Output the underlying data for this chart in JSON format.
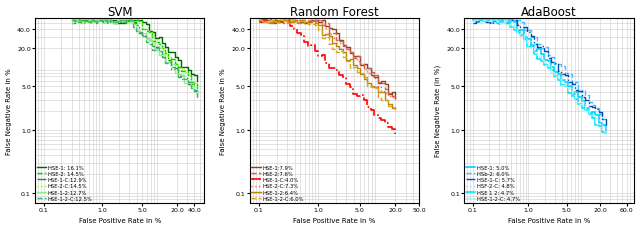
{
  "panels": [
    {
      "title": "SVM",
      "xlabel": "False Positive Rate in %",
      "ylabel": "False Negative Rate in %",
      "xlim": [
        0.07,
        60
      ],
      "ylim": [
        0.07,
        60
      ],
      "xticks": [
        0.1,
        1,
        5,
        20,
        40
      ],
      "yticks": [
        0.1,
        1,
        5,
        20,
        40
      ],
      "fpr_start": 0.3,
      "fpr_end": 45,
      "curves": [
        {
          "label": "HSE-1: 16.1%",
          "color": "#006400",
          "ls": "-",
          "lw": 1.0,
          "eer": 16.1
        },
        {
          "label": "HSE-2: 14.5%",
          "color": "#00cc00",
          "ls": "--",
          "lw": 1.0,
          "eer": 14.5
        },
        {
          "label": "HSE-1-C:12.9%",
          "color": "#228B22",
          "ls": "-.",
          "lw": 1.0,
          "eer": 12.9
        },
        {
          "label": "HSE-2-C:14.5%",
          "color": "#7cfc00",
          "ls": ":",
          "lw": 1.0,
          "eer": 14.5
        },
        {
          "label": "HSE-1-2:12.7%",
          "color": "#90ee90",
          "ls": "-",
          "lw": 1.0,
          "eer": 12.7
        },
        {
          "label": "HSE-1-2-C:12.5%",
          "color": "#3cb371",
          "ls": "--",
          "lw": 1.0,
          "eer": 12.5
        }
      ]
    },
    {
      "title": "Random Forest",
      "xlabel": "False Positive Rate in %",
      "ylabel": "False Negative Rate in %",
      "xlim": [
        0.07,
        50
      ],
      "ylim": [
        0.07,
        60
      ],
      "xticks": [
        0.1,
        1,
        5,
        20,
        50
      ],
      "yticks": [
        0.1,
        1,
        5,
        20,
        40
      ],
      "fpr_start": 0.1,
      "fpr_end": 20,
      "curves": [
        {
          "label": "HSE-1:7.9%",
          "color": "#8B4513",
          "ls": "-",
          "lw": 1.0,
          "eer": 7.9
        },
        {
          "label": "HSE-2:7.6%",
          "color": "#cd5c5c",
          "ls": "--",
          "lw": 1.0,
          "eer": 7.6
        },
        {
          "label": "HSE-1-C:4.0%",
          "color": "#ff0000",
          "ls": "-.",
          "lw": 1.2,
          "eer": 4.0
        },
        {
          "label": "HSE-2-C:7.3%",
          "color": "#ff6347",
          "ls": ":",
          "lw": 1.0,
          "eer": 7.3
        },
        {
          "label": "HSE-1-2:6.4%",
          "color": "#b8860b",
          "ls": "-",
          "lw": 1.0,
          "eer": 6.4
        },
        {
          "label": "HSE-1-2-C:6.0%",
          "color": "#daa520",
          "ls": "--",
          "lw": 1.0,
          "eer": 6.0
        }
      ]
    },
    {
      "title": "AdaBoost",
      "xlabel": "False Positive Rate in %",
      "ylabel": "False Negative Rate (in %)",
      "xlim": [
        0.07,
        80
      ],
      "ylim": [
        0.07,
        60
      ],
      "xticks": [
        0.1,
        1,
        5,
        20,
        60
      ],
      "yticks": [
        0.1,
        1,
        5,
        20,
        40
      ],
      "fpr_start": 0.1,
      "fpr_end": 25,
      "curves": [
        {
          "label": "HSE-1: 5.0%",
          "color": "#00d0ff",
          "ls": "-",
          "lw": 1.2,
          "eer": 5.0
        },
        {
          "label": "HSb-2: 6.0%",
          "color": "#4db8ff",
          "ls": "--",
          "lw": 1.0,
          "eer": 6.0
        },
        {
          "label": "HSE-1-C: 5.7%",
          "color": "#0050b0",
          "ls": "-.",
          "lw": 1.0,
          "eer": 5.7
        },
        {
          "label": "HSF-2-C: 4.8%",
          "color": "#b0d8ff",
          "ls": ":",
          "lw": 1.0,
          "eer": 4.8
        },
        {
          "label": "HSE 1 2: 4.7%",
          "color": "#00e5ff",
          "ls": "-",
          "lw": 1.2,
          "eer": 4.7
        },
        {
          "label": "HSE-1-2-C: 4.7%",
          "color": "#aaf0f0",
          "ls": "--",
          "lw": 1.0,
          "eer": 4.7
        }
      ]
    }
  ]
}
